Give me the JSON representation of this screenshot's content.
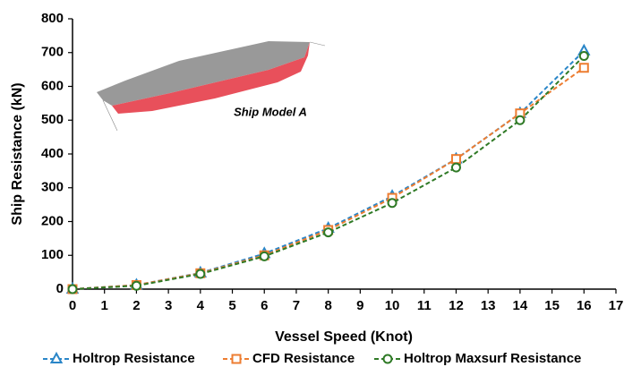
{
  "chart_data": {
    "type": "line",
    "annotation": "Ship Model A",
    "x_label": "Vessel Speed (Knot)",
    "y_label": "Ship Resistance (kN)",
    "x": [
      0,
      2,
      4,
      6,
      8,
      10,
      12,
      14,
      16
    ],
    "series": [
      {
        "name": "Holtrop Resistance",
        "color": "#2a86c8",
        "marker": "triangle",
        "values": [
          0,
          12,
          48,
          105,
          180,
          275,
          385,
          520,
          705
        ]
      },
      {
        "name": "CFD Resistance",
        "color": "#ed7d31",
        "marker": "square",
        "values": [
          0,
          12,
          47,
          100,
          175,
          270,
          385,
          520,
          655
        ]
      },
      {
        "name": "Holtrop Maxsurf Resistance",
        "color": "#2f7a26",
        "marker": "circle",
        "values": [
          0,
          10,
          45,
          97,
          168,
          255,
          360,
          500,
          690
        ]
      }
    ],
    "xlim": [
      0,
      17
    ],
    "xticks": [
      0,
      1,
      2,
      3,
      4,
      5,
      6,
      7,
      8,
      9,
      10,
      11,
      12,
      13,
      14,
      15,
      16,
      17
    ],
    "ylim": [
      0,
      800
    ],
    "yticks": [
      0,
      100,
      200,
      300,
      400,
      500,
      600,
      700,
      800
    ],
    "grid": false,
    "legend": "bottom"
  }
}
